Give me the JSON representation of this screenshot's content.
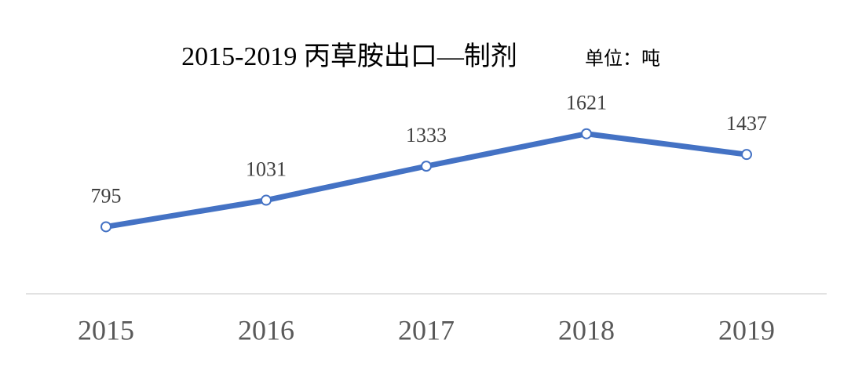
{
  "chart_data": {
    "type": "line",
    "title": "2015-2019 丙草胺出口—制剂",
    "subtitle": "单位：吨",
    "categories": [
      "2015",
      "2016",
      "2017",
      "2018",
      "2019"
    ],
    "values": [
      795,
      1031,
      1333,
      1621,
      1437
    ],
    "color": "#4472c4",
    "ylim": [
      200,
      2600
    ]
  }
}
